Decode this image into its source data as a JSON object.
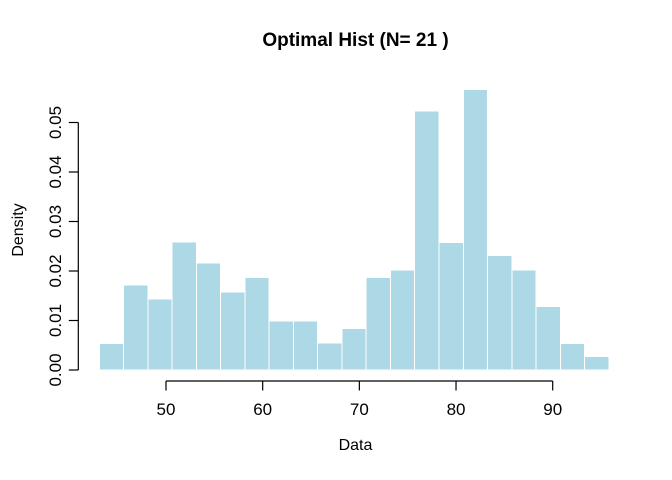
{
  "chart_data": {
    "type": "bar",
    "subtype": "histogram",
    "title": "Optimal Hist (N= 21 )",
    "xlabel": "Data",
    "ylabel": "Density",
    "n_bins": 21,
    "bin_start": 43.1,
    "bin_width": 2.51,
    "densities": [
      0.0054,
      0.0172,
      0.0143,
      0.0259,
      0.0216,
      0.0158,
      0.0187,
      0.0099,
      0.0099,
      0.0055,
      0.0084,
      0.0187,
      0.0202,
      0.0523,
      0.0258,
      0.0567,
      0.0231,
      0.0202,
      0.0128,
      0.0054,
      0.0027
    ],
    "x_tick_values": [
      50,
      60,
      70,
      80,
      90
    ],
    "x_tick_labels": [
      "50",
      "60",
      "70",
      "80",
      "90"
    ],
    "y_tick_values": [
      0,
      0.01,
      0.02,
      0.03,
      0.04,
      0.05
    ],
    "y_tick_labels": [
      "0.00",
      "0.01",
      "0.02",
      "0.03",
      "0.04",
      "0.05"
    ],
    "xlim": [
      43.1,
      95.8
    ],
    "ylim": [
      0,
      0.05
    ],
    "grid": false,
    "legend_position": "none",
    "colors": {
      "bar_fill": "#ADD8E6",
      "bar_border": "#FFFFFF",
      "axis": "#000000",
      "text": "#000000",
      "background": "#FFFFFF"
    }
  }
}
